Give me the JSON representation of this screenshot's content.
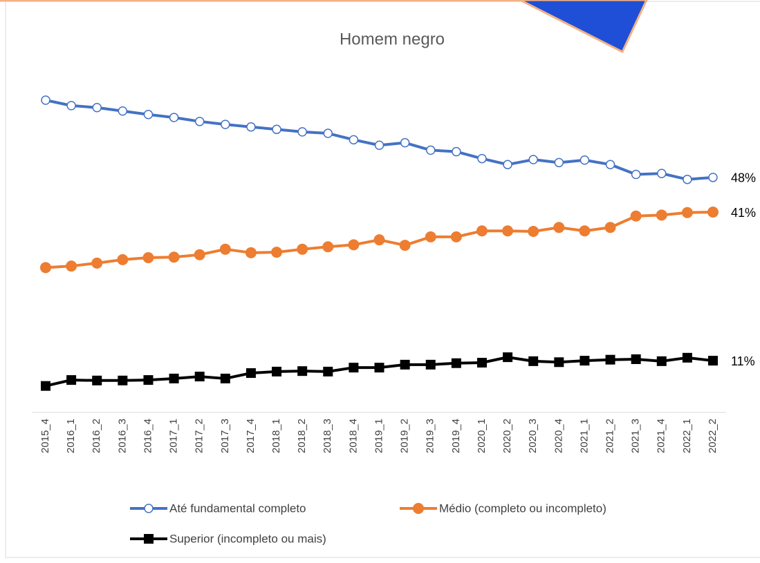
{
  "chart_data": {
    "type": "line",
    "title": "Homem negro",
    "categories": [
      "2015_4",
      "2016_1",
      "2016_2",
      "2016_3",
      "2016_4",
      "2017_1",
      "2017_2",
      "2017_3",
      "2017_4",
      "2018_1",
      "2018_2",
      "2018_3",
      "2018_4",
      "2019_1",
      "2019_2",
      "2019_3",
      "2019_4",
      "2020_1",
      "2020_2",
      "2020_3",
      "2020_4",
      "2021_1",
      "2021_2",
      "2021_3",
      "2021_4",
      "2022_1",
      "2022_2"
    ],
    "series": [
      {
        "name": "Até fundamental completo",
        "color": "#4472c4",
        "marker": "open-circle",
        "values": [
          63.6,
          62.5,
          62.1,
          61.4,
          60.7,
          60.1,
          59.3,
          58.7,
          58.2,
          57.7,
          57.2,
          56.9,
          55.6,
          54.5,
          55.0,
          53.5,
          53.2,
          51.8,
          50.6,
          51.6,
          51.0,
          51.5,
          50.6,
          48.6,
          48.8,
          47.6,
          48
        ],
        "value_labels": [
          null,
          null,
          null,
          null,
          null,
          null,
          null,
          null,
          null,
          null,
          null,
          null,
          null,
          null,
          null,
          null,
          null,
          null,
          null,
          null,
          null,
          null,
          null,
          null,
          null,
          null,
          "48%"
        ]
      },
      {
        "name": "Médio (completo ou incompleto)",
        "color": "#ed7d31",
        "marker": "circle",
        "values": [
          29.8,
          30.1,
          30.7,
          31.4,
          31.8,
          31.9,
          32.4,
          33.5,
          32.8,
          32.9,
          33.5,
          34.0,
          34.4,
          35.4,
          34.3,
          36.0,
          36.0,
          37.2,
          37.2,
          37.1,
          37.9,
          37.2,
          37.9,
          40.2,
          40.4,
          40.9,
          41
        ],
        "value_labels": [
          null,
          null,
          null,
          null,
          null,
          null,
          null,
          null,
          null,
          null,
          null,
          null,
          null,
          null,
          null,
          null,
          null,
          null,
          null,
          null,
          null,
          null,
          null,
          null,
          null,
          null,
          "41%"
        ]
      },
      {
        "name": "Superior (incompleto ou mais)",
        "color": "#000000",
        "marker": "square",
        "values": [
          5.9,
          7.1,
          7.0,
          7.0,
          7.1,
          7.4,
          7.8,
          7.4,
          8.5,
          8.8,
          8.9,
          8.8,
          9.6,
          9.6,
          10.2,
          10.2,
          10.5,
          10.6,
          11.7,
          10.9,
          10.7,
          11.0,
          11.2,
          11.3,
          10.9,
          11.6,
          11
        ],
        "value_labels": [
          null,
          null,
          null,
          null,
          null,
          null,
          null,
          null,
          null,
          null,
          null,
          null,
          null,
          null,
          null,
          null,
          null,
          null,
          null,
          null,
          null,
          null,
          null,
          null,
          null,
          null,
          "11%"
        ]
      }
    ]
  }
}
